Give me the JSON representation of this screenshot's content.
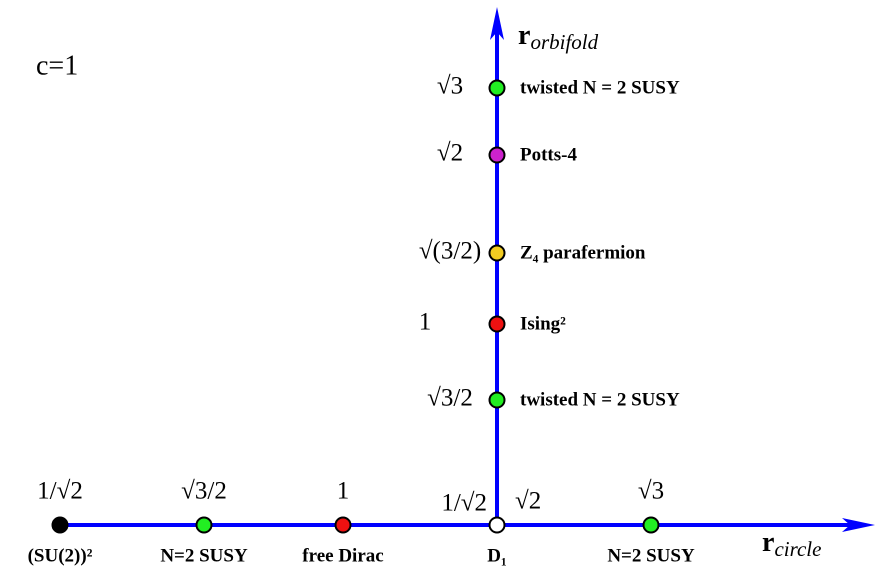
{
  "title": "c=1",
  "axes": {
    "vertical": {
      "symbol": "r",
      "subscript": "orbifold"
    },
    "horizontal": {
      "symbol": "r",
      "subscript": "circle"
    }
  },
  "horizontal_points": [
    {
      "value_labels": [
        "1/√2"
      ],
      "name": "(SU(2))²",
      "color": "#000000"
    },
    {
      "value_labels": [
        "√3/2"
      ],
      "name": "N=2   SUSY",
      "color": "#22ee22"
    },
    {
      "value_labels": [
        "1"
      ],
      "name": "free  Dirac",
      "color": "#ee1111"
    },
    {
      "value_labels": [
        "1/√2",
        "√2"
      ],
      "name": "D₁",
      "color": "#ffffff"
    },
    {
      "value_labels": [
        "√3"
      ],
      "name": "N=2   SUSY",
      "color": "#22ee22"
    }
  ],
  "vertical_points": [
    {
      "value_label": "√3",
      "name": "twisted   N = 2   SUSY",
      "color": "#22ee22"
    },
    {
      "value_label": "√2",
      "name": "Potts-4",
      "color": "#cc22cc"
    },
    {
      "value_label": "√(3/2)",
      "name": "Z₄   parafermion",
      "color": "#f2cc22"
    },
    {
      "value_label": "1",
      "name": "Ising²",
      "color": "#ee1111"
    },
    {
      "value_label": "√3/2",
      "name": "twisted   N = 2   SUSY",
      "color": "#22ee22"
    }
  ]
}
